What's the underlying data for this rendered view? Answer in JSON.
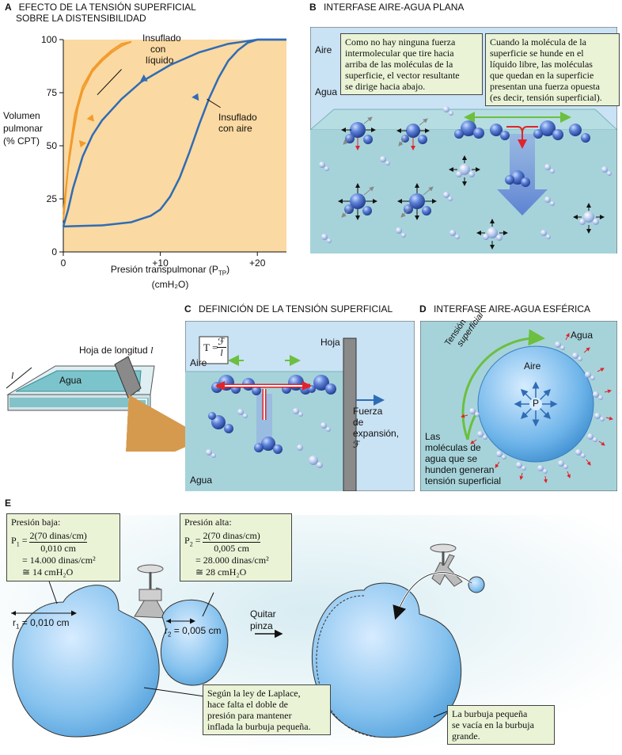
{
  "panel_a": {
    "letter": "A",
    "title_line1": "EFECTO DE LA TENSIÓN SUPERFICIAL",
    "title_line2": "SOBRE LA DISTENSIBILIDAD",
    "ylabel": [
      "Volumen",
      "pulmonar",
      "(% CPT)"
    ],
    "xlabel_main": "Presión transpulmonar (P",
    "xlabel_sub": "TP",
    "xlabel_close": ")",
    "xlabel_unit": "(cmH₂O)",
    "label_liquid": [
      "Insuflado",
      "con",
      "líquido"
    ],
    "label_air": [
      "Insuflado",
      "con aire"
    ],
    "colors": {
      "background": "#fbd9a2",
      "liquid": "#f29b2a",
      "air": "#2f6cb5"
    }
  },
  "chart_data": {
    "type": "line",
    "xlabel": "Presión transpulmonar (PTP) (cmH2O)",
    "ylabel": "Volumen pulmonar (% CPT)",
    "xlim": [
      0,
      23
    ],
    "ylim": [
      0,
      100
    ],
    "x_ticks": [
      {
        "v": 0,
        "label": "0"
      },
      {
        "v": 10,
        "label": "+10"
      },
      {
        "v": 20,
        "label": "+20"
      }
    ],
    "y_ticks": [
      {
        "v": 0,
        "label": "0"
      },
      {
        "v": 25,
        "label": "25"
      },
      {
        "v": 50,
        "label": "50"
      },
      {
        "v": 75,
        "label": "75"
      },
      {
        "v": 100,
        "label": "100"
      }
    ],
    "series": [
      {
        "name": "Insuflado con líquido (inflación)",
        "x": [
          0,
          0.5,
          1,
          1.5,
          2,
          3,
          4,
          5,
          6,
          7
        ],
        "y": [
          18,
          40,
          55,
          68,
          76,
          85,
          90,
          94,
          97,
          99
        ]
      },
      {
        "name": "Insuflado con líquido (desinflación)",
        "x": [
          7,
          6,
          5,
          4,
          3,
          2,
          1.2,
          0.6,
          0
        ],
        "y": [
          99,
          98,
          95,
          91,
          86,
          78,
          65,
          45,
          15
        ]
      },
      {
        "name": "Insuflado con aire (inflación)",
        "x": [
          0,
          4,
          7,
          9,
          10,
          11,
          12,
          13,
          14,
          15,
          16,
          17,
          18,
          19,
          20,
          23
        ],
        "y": [
          12,
          12.5,
          14,
          17,
          20,
          26,
          35,
          47,
          60,
          72,
          82,
          90,
          95,
          98.5,
          100,
          100
        ]
      },
      {
        "name": "Insuflado con aire (desinflación)",
        "x": [
          23,
          20,
          17,
          14,
          11,
          8,
          6,
          4,
          3,
          2,
          1,
          0.5,
          0
        ],
        "y": [
          100,
          100,
          98,
          94,
          88,
          80,
          72,
          62,
          55,
          45,
          30,
          20,
          12
        ]
      }
    ]
  },
  "panel_b": {
    "letter": "B",
    "title": "INTERFASE AIRE-AGUA PLANA",
    "aire": "Aire",
    "agua": "Agua",
    "callout_left": [
      "Como no hay ninguna fuerza",
      "intermolecular que tire hacia",
      "arriba de las moléculas de la",
      "superficie, el vector resultante",
      "se dirige hacia abajo."
    ],
    "callout_right": [
      "Cuando la molécula de la",
      "superficie se hunde en el",
      "líquido libre, las moléculas",
      "que quedan en la superficie",
      "presentan una fuerza opuesta",
      "(es decir, tensión superficial)."
    ]
  },
  "panel_c": {
    "letter": "C",
    "title": "DEFINICIÓN DE LA TENSIÓN SUPERFICIAL",
    "hoja_label": "Hoja de longitud ",
    "hoja_l": "l",
    "l_mark": "l",
    "agua_tray": "Agua",
    "formula_T": "T = ",
    "formula_num": "ℱ",
    "formula_den": "l",
    "hoja": "Hoja",
    "aire": "Aire",
    "agua": "Agua",
    "fuerza": [
      "Fuerza",
      "de",
      "expansión,",
      "ℱ"
    ]
  },
  "panel_d": {
    "letter": "D",
    "title": "INTERFASE AIRE-AGUA ESFÉRICA",
    "agua": "Agua",
    "aire": "Aire",
    "tension1": "Tensión",
    "tension2": "superficial",
    "p": "P",
    "note": [
      "Las",
      "moléculas de",
      "agua que se",
      "hunden generan",
      "tensión superficial"
    ]
  },
  "panel_e": {
    "letter": "E",
    "low_title": "Presión baja:",
    "p1": "P",
    "p1_sub": "1",
    "p1_num": "2(70 dinas/cm)",
    "p1_den": "0,010 cm",
    "p1_line1": "= 14.000 dinas/cm²",
    "p1_line2": "≅ 14 cmH₂O",
    "high_title": "Presión alta:",
    "p2": "P",
    "p2_sub": "2",
    "p2_num": "2(70 dinas/cm)",
    "p2_den": "0,005 cm",
    "p2_line1": "= 28.000 dinas/cm²",
    "p2_line2": "≅ 28 cmH₂O",
    "r1": "r",
    "r1_sub": "1",
    "r1_val": " = 0,010 cm",
    "r2": "r",
    "r2_sub": "2",
    "r2_val": " = 0,005 cm",
    "quitar": [
      "Quitar",
      "pinza"
    ],
    "laplace": [
      "Según la ley de Laplace,",
      "hace falta el doble de",
      "presión para mantener",
      "inflada la burbuja pequeña."
    ],
    "empties": [
      "La burbuja pequeña",
      "se vacía en la burbuja",
      "grande."
    ]
  }
}
